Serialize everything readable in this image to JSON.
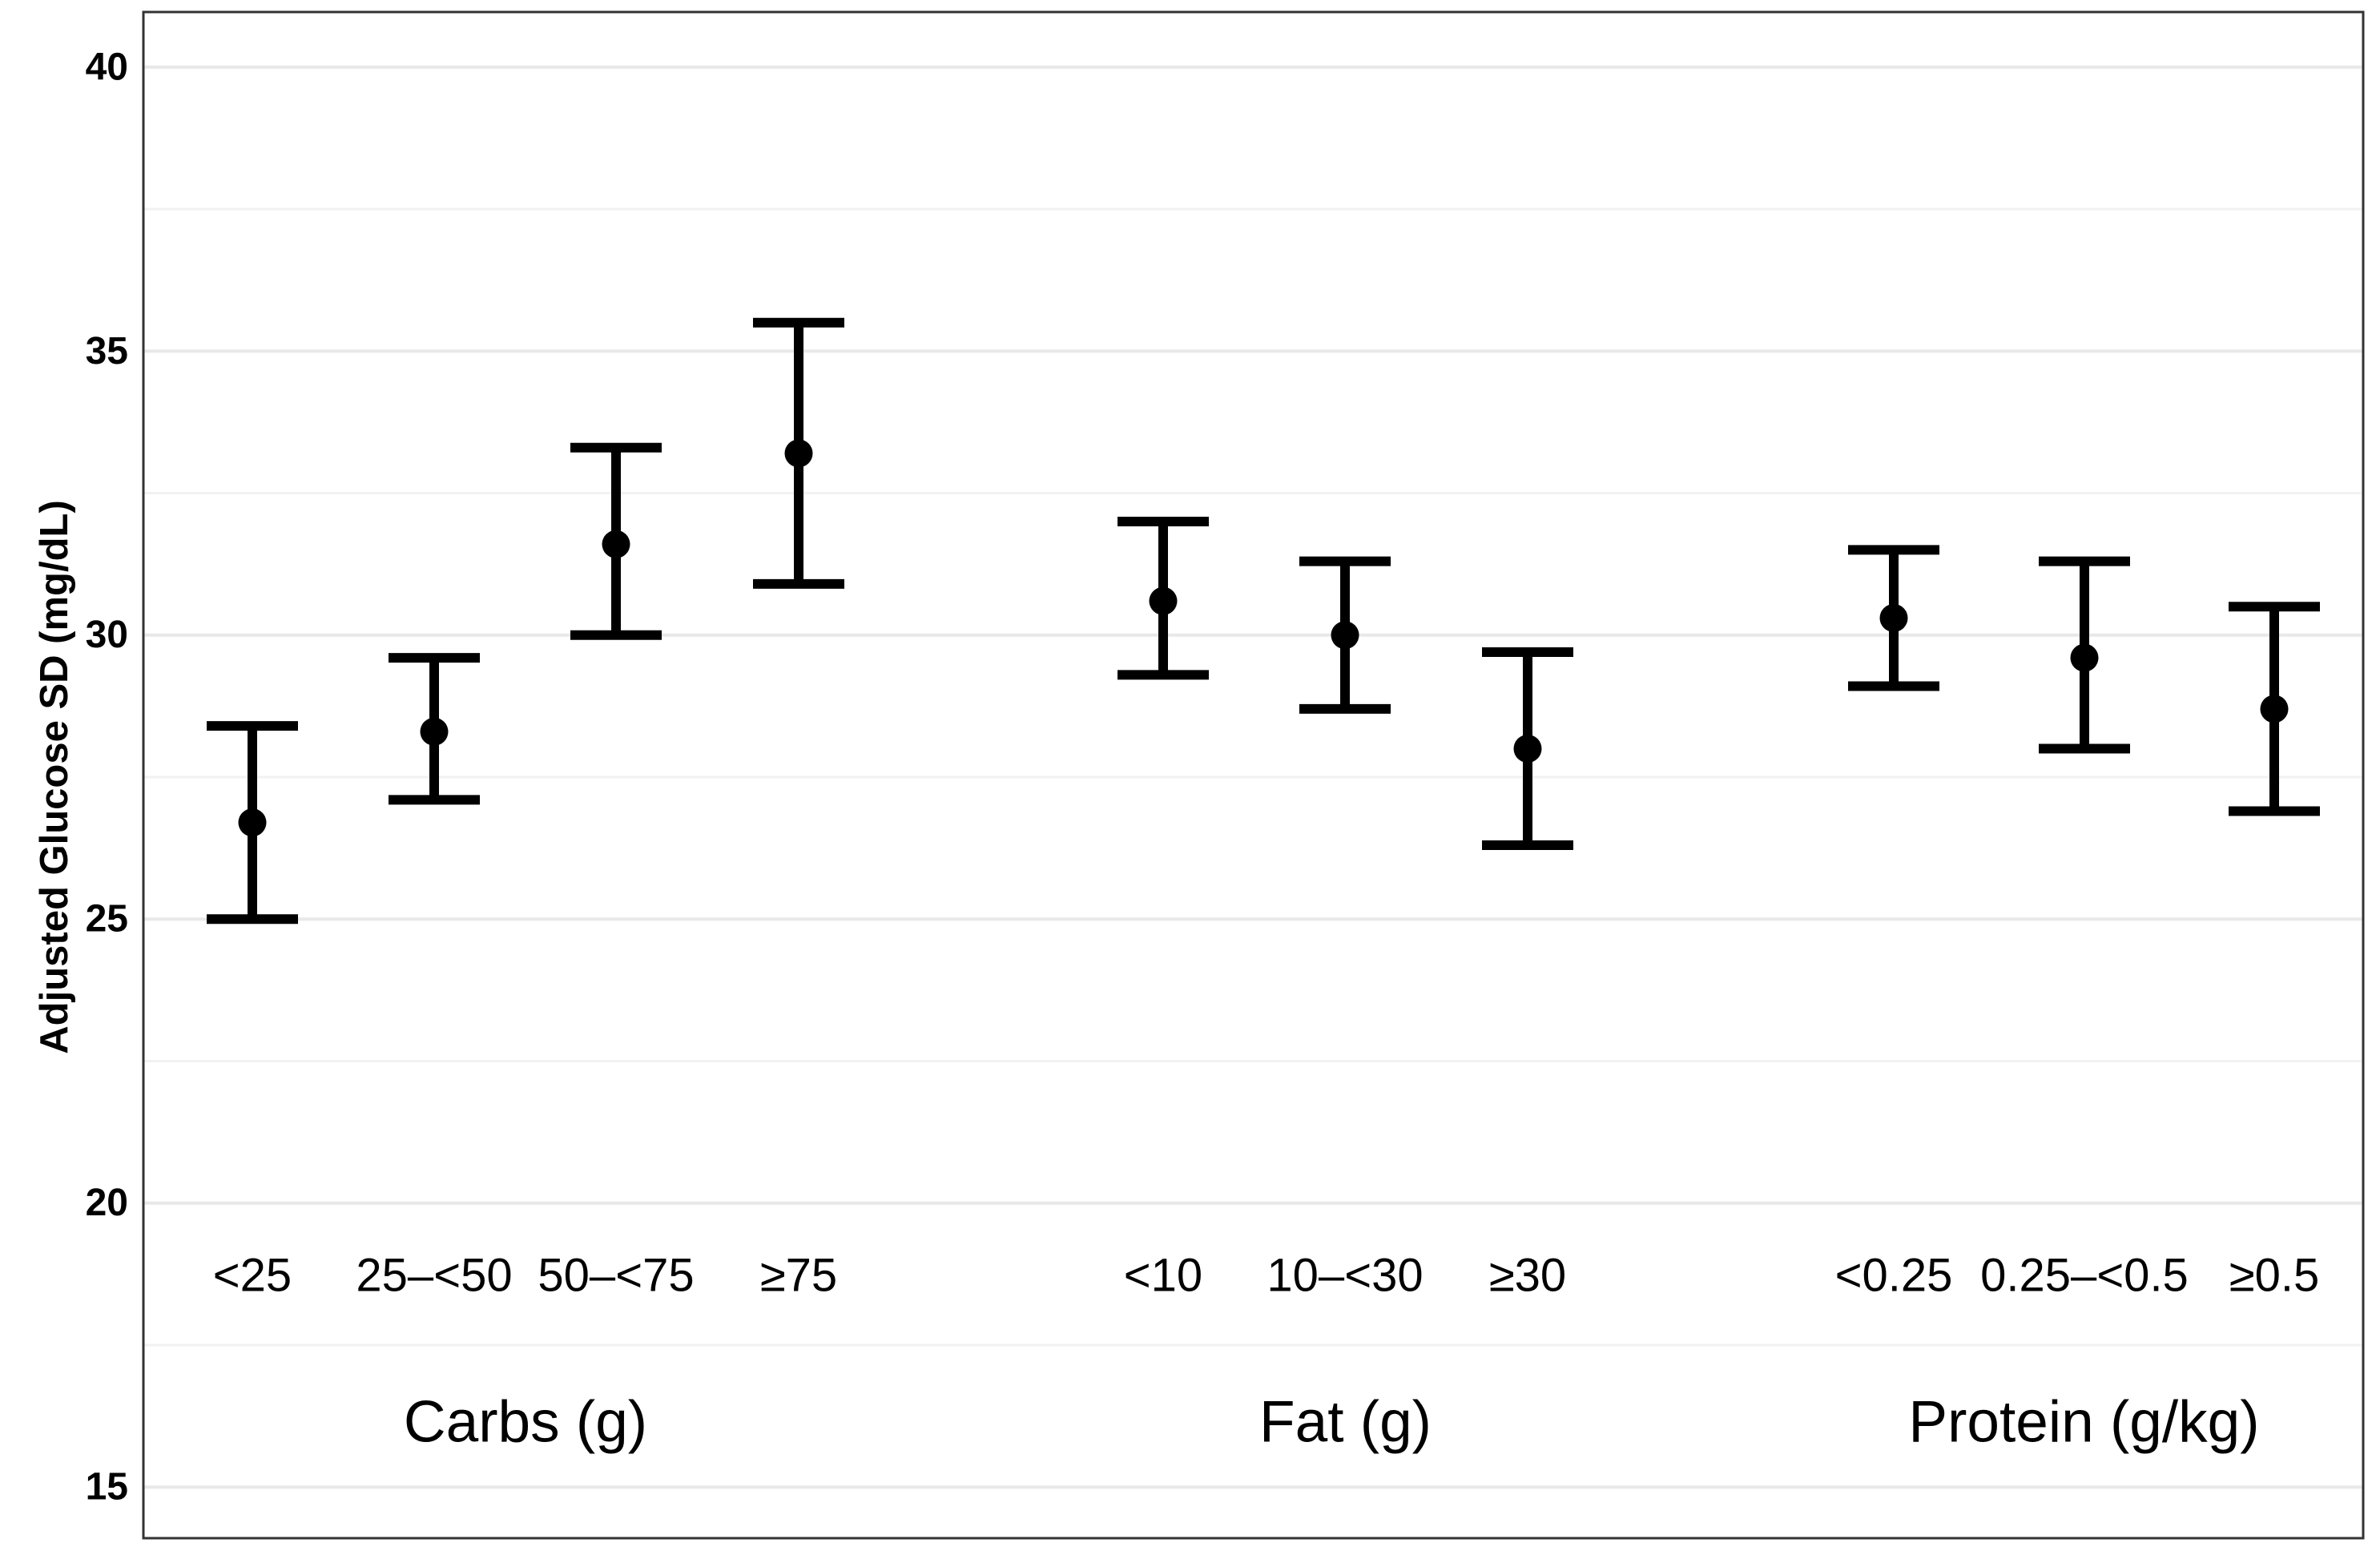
{
  "figure": {
    "background": "#ffffff"
  },
  "chart_data": {
    "type": "scatter-errorbar",
    "title": "",
    "ylabel": "Adjusted Glucose SD (mg/dL)",
    "xlabel": "",
    "y_ticks": [
      40,
      35,
      30,
      25,
      20,
      15
    ],
    "y_minor_ticks": [
      37.5,
      32.5,
      27.5,
      22.5,
      17.5
    ],
    "ylim": [
      14.1,
      40.97
    ],
    "grid": "horizontal, major and minor, light gray, on white background",
    "legend_position": "none",
    "groups": [
      {
        "label": "Carbs (g)",
        "categories": [
          "<25",
          "25–<50",
          "50–<75",
          "≥75"
        ],
        "means": [
          26.7,
          28.3,
          31.6,
          33.2
        ],
        "ci_lower": [
          25.0,
          27.1,
          30.0,
          30.9
        ],
        "ci_upper": [
          28.4,
          29.6,
          33.3,
          35.5
        ]
      },
      {
        "label": "Fat (g)",
        "categories": [
          "<10",
          "10–<30",
          "≥30"
        ],
        "means": [
          30.6,
          30.0,
          28.0
        ],
        "ci_lower": [
          29.3,
          28.7,
          26.3
        ],
        "ci_upper": [
          32.0,
          31.3,
          29.7
        ]
      },
      {
        "label": "Protein (g/kg)",
        "categories": [
          "<0.25",
          "0.25–<0.5",
          "≥0.5"
        ],
        "means": [
          30.3,
          29.6,
          28.7
        ],
        "ci_lower": [
          29.1,
          28.0,
          26.9
        ],
        "ci_upper": [
          31.5,
          31.3,
          30.5
        ]
      }
    ],
    "colors": {
      "point": "#000000",
      "error_bar": "#000000",
      "panel_border": "#333333",
      "grid_major": "#e8e8e8",
      "grid_minor": "#f2f2f2",
      "text": "#000000"
    }
  }
}
